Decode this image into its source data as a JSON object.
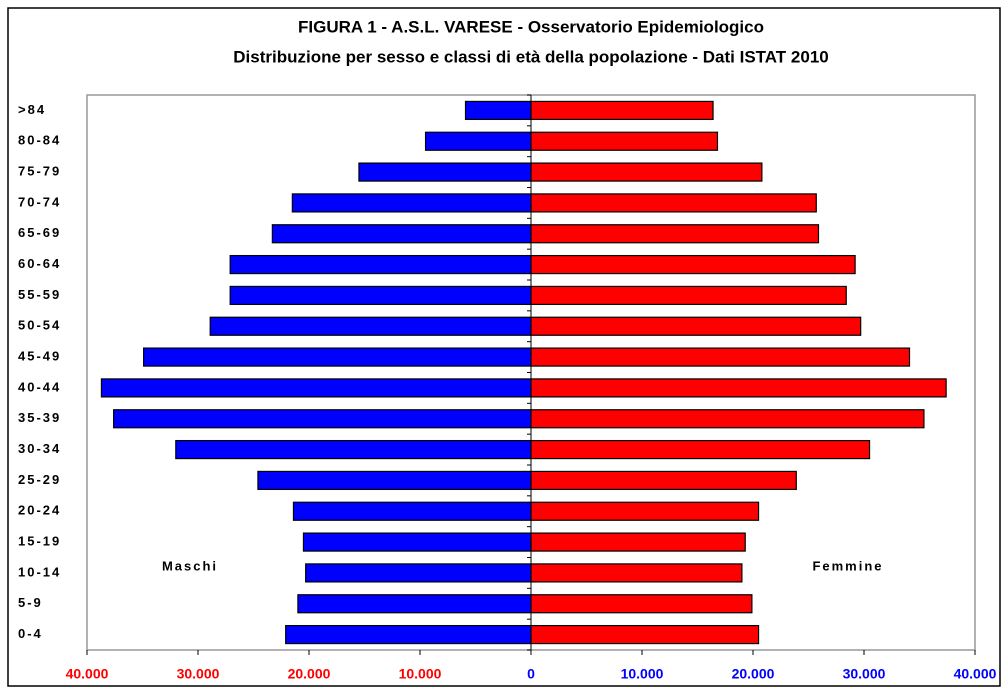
{
  "chart_data": {
    "type": "pyramid",
    "title": "FIGURA 1 - A.S.L.  VARESE  - Osservatorio Epidemiologico",
    "subtitle": "Distribuzione per sesso e classi di età della popolazione - Dati ISTAT 2010",
    "categories": [
      "0-4",
      "5-9",
      "10-14",
      "15-19",
      "20-24",
      "25-29",
      "30-34",
      "35-39",
      "40-44",
      "45-49",
      "50-54",
      "55-59",
      "60-64",
      "65-69",
      "70-74",
      "75-79",
      "80-84",
      ">84"
    ],
    "series": [
      {
        "name": "Maschi",
        "color": "#0000ff",
        "values": [
          -22100,
          -21000,
          -20300,
          -20500,
          -21400,
          -24600,
          -32000,
          -37600,
          -38700,
          -34900,
          -28900,
          -27100,
          -27100,
          -23300,
          -21500,
          -15500,
          -9500,
          -5900
        ]
      },
      {
        "name": "Femmine",
        "color": "#ff0000",
        "values": [
          20500,
          19900,
          19000,
          19300,
          20500,
          23900,
          30500,
          35400,
          37400,
          34100,
          29700,
          28400,
          29200,
          25900,
          25700,
          20800,
          16800,
          16400
        ]
      }
    ],
    "xlim": [
      -40000,
      40000
    ],
    "xticks": [
      {
        "value": -40000,
        "label": "40.000",
        "color": "#ff0000"
      },
      {
        "value": -30000,
        "label": "30.000",
        "color": "#ff0000"
      },
      {
        "value": -20000,
        "label": "20.000",
        "color": "#ff0000"
      },
      {
        "value": -10000,
        "label": "10.000",
        "color": "#ff0000"
      },
      {
        "value": 0,
        "label": "0",
        "color": "#0000ff"
      },
      {
        "value": 10000,
        "label": "10.000",
        "color": "#0000ff"
      },
      {
        "value": 20000,
        "label": "20.000",
        "color": "#0000ff"
      },
      {
        "value": 30000,
        "label": "30.000",
        "color": "#0000ff"
      },
      {
        "value": 40000,
        "label": "40.000",
        "color": "#0000ff"
      }
    ]
  }
}
